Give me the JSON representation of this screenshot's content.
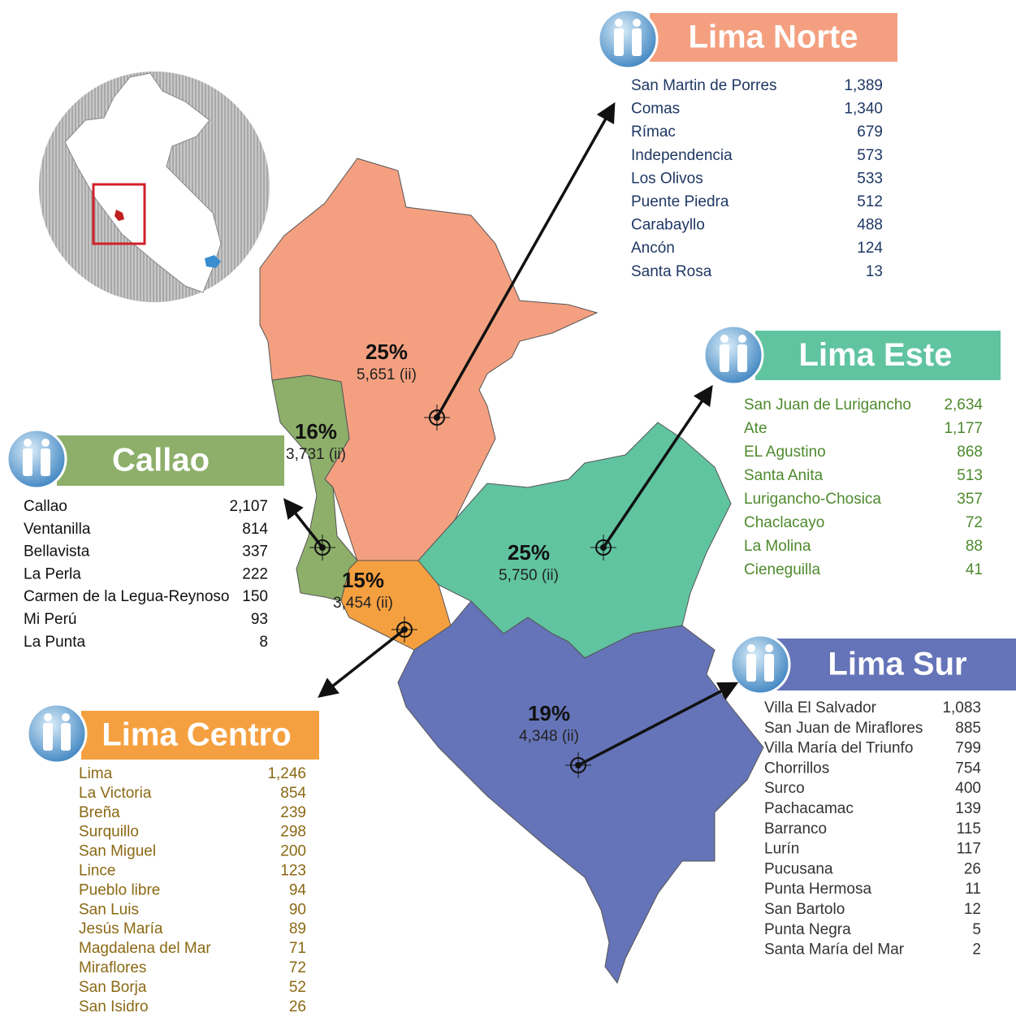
{
  "regions": [
    {
      "name": "Lima Norte",
      "percent": "25%",
      "total": "5,651 (ii)",
      "districts": [
        {
          "name": "San Martin de Porres",
          "value": "1,389"
        },
        {
          "name": "Comas",
          "value": "1,340"
        },
        {
          "name": "Rímac",
          "value": "679"
        },
        {
          "name": "Independencia",
          "value": "573"
        },
        {
          "name": "Los Olivos",
          "value": "533"
        },
        {
          "name": "Puente Piedra",
          "value": "512"
        },
        {
          "name": "Carabayllo",
          "value": "488"
        },
        {
          "name": "Ancón",
          "value": "124"
        },
        {
          "name": "Santa Rosa",
          "value": "13"
        }
      ]
    },
    {
      "name": "Lima Este",
      "percent": "25%",
      "total": "5,750 (ii)",
      "districts": [
        {
          "name": "San Juan de Lurigancho",
          "value": "2,634"
        },
        {
          "name": "Ate",
          "value": "1,177"
        },
        {
          "name": "EL Agustino",
          "value": "868"
        },
        {
          "name": "Santa Anita",
          "value": "513"
        },
        {
          "name": "Lurigancho-Chosica",
          "value": "357"
        },
        {
          "name": "Chaclacayo",
          "value": "72"
        },
        {
          "name": "La Molina",
          "value": "88"
        },
        {
          "name": "Cieneguilla",
          "value": "41"
        }
      ]
    },
    {
      "name": "Callao",
      "percent": "16%",
      "total": "3,731 (ii)",
      "districts": [
        {
          "name": "Callao",
          "value": "2,107"
        },
        {
          "name": "Ventanilla",
          "value": "814"
        },
        {
          "name": "Bellavista",
          "value": "337"
        },
        {
          "name": "La Perla",
          "value": "222"
        },
        {
          "name": "Carmen de la Legua-Reynoso",
          "value": "150"
        },
        {
          "name": "Mi Perú",
          "value": "93"
        },
        {
          "name": "La Punta",
          "value": "8"
        }
      ]
    },
    {
      "name": "Lima Centro",
      "percent": "15%",
      "total": "3,454 (ii)",
      "districts": [
        {
          "name": "Lima",
          "value": "1,246"
        },
        {
          "name": "La Victoria",
          "value": "854"
        },
        {
          "name": "Breña",
          "value": "239"
        },
        {
          "name": "Surquillo",
          "value": "298"
        },
        {
          "name": "San Miguel",
          "value": "200"
        },
        {
          "name": "Lince",
          "value": "123"
        },
        {
          "name": "Pueblo libre",
          "value": "94"
        },
        {
          "name": "San Luis",
          "value": "90"
        },
        {
          "name": "Jesús María",
          "value": "89"
        },
        {
          "name": "Magdalena del Mar",
          "value": "71"
        },
        {
          "name": "Miraflores",
          "value": "72"
        },
        {
          "name": "San Borja",
          "value": "52"
        },
        {
          "name": "San Isidro",
          "value": "26"
        }
      ]
    },
    {
      "name": "Lima Sur",
      "percent": "19%",
      "total": "4,348 (ii)",
      "districts": [
        {
          "name": "Villa El Salvador",
          "value": "1,083"
        },
        {
          "name": "San Juan de Miraflores",
          "value": "885"
        },
        {
          "name": "Villa María del Triunfo",
          "value": "799"
        },
        {
          "name": "Chorrillos",
          "value": "754"
        },
        {
          "name": "Surco",
          "value": "400"
        },
        {
          "name": "Pachacamac",
          "value": "139"
        },
        {
          "name": "Barranco",
          "value": "115"
        },
        {
          "name": "Lurín",
          "value": "117"
        },
        {
          "name": "Pucusana",
          "value": "26"
        },
        {
          "name": "Punta Hermosa",
          "value": "11"
        },
        {
          "name": "San Bartolo",
          "value": "12"
        },
        {
          "name": "Punta Negra",
          "value": "5"
        },
        {
          "name": "Santa María del Mar",
          "value": "2"
        }
      ]
    }
  ]
}
